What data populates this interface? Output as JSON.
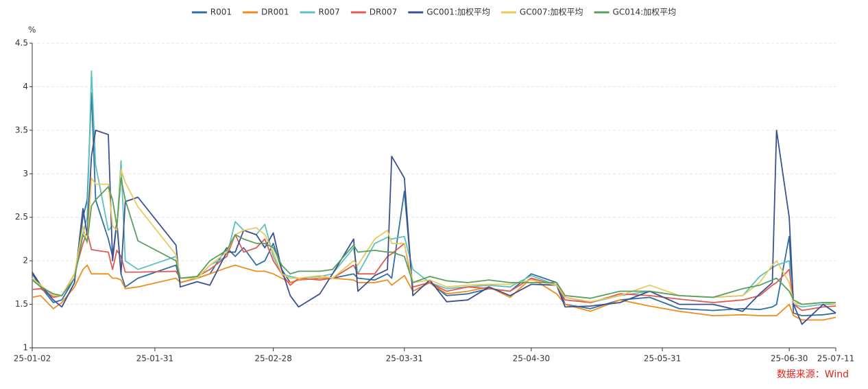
{
  "chart_data": {
    "type": "line",
    "y_unit": "%",
    "source": "数据来源：Wind",
    "legend": "top",
    "grid": true,
    "xlim": [
      "25-01-02",
      "25-07-11"
    ],
    "xticks": [
      "25-01-02",
      "25-01-31",
      "25-02-28",
      "25-03-31",
      "25-04-30",
      "25-05-31",
      "25-06-30",
      "25-07-11"
    ],
    "ylim": [
      1,
      4.5
    ],
    "yticks": [
      1,
      1.5,
      2,
      2.5,
      3,
      3.5,
      4,
      4.5
    ],
    "x": [
      "25-01-02",
      "25-01-04",
      "25-01-07",
      "25-01-09",
      "25-01-12",
      "25-01-14",
      "25-01-15",
      "25-01-16",
      "25-01-17",
      "25-01-20",
      "25-01-21",
      "25-01-22",
      "25-01-23",
      "25-01-24",
      "25-01-27",
      "25-02-05",
      "25-02-06",
      "25-02-10",
      "25-02-13",
      "25-02-17",
      "25-02-19",
      "25-02-21",
      "25-02-24",
      "25-02-26",
      "25-02-28",
      "25-03-02",
      "25-03-04",
      "25-03-06",
      "25-03-11",
      "25-03-14",
      "25-03-19",
      "25-03-20",
      "25-03-24",
      "25-03-27",
      "25-03-28",
      "25-03-31",
      "25-04-02",
      "25-04-06",
      "25-04-10",
      "25-04-15",
      "25-04-20",
      "25-04-25",
      "25-04-30",
      "25-05-06",
      "25-05-08",
      "25-05-14",
      "25-05-21",
      "25-05-28",
      "25-06-04",
      "25-06-12",
      "25-06-19",
      "25-06-23",
      "25-06-26",
      "25-06-27",
      "25-06-30",
      "25-07-01",
      "25-07-03",
      "25-07-08",
      "25-07-11"
    ],
    "series": [
      {
        "name": "R001",
        "color": "#2f6e9f",
        "values": [
          1.85,
          1.7,
          1.52,
          1.55,
          1.8,
          2.5,
          2.7,
          3.93,
          2.7,
          2.25,
          2.05,
          2.45,
          1.85,
          1.7,
          1.8,
          1.95,
          1.75,
          1.8,
          1.85,
          2.15,
          2.05,
          2.15,
          1.95,
          2.0,
          2.2,
          1.9,
          1.75,
          1.78,
          1.8,
          1.8,
          1.85,
          1.8,
          1.78,
          1.85,
          1.8,
          2.8,
          1.65,
          1.75,
          1.6,
          1.62,
          1.68,
          1.65,
          1.85,
          1.75,
          1.5,
          1.45,
          1.55,
          1.58,
          1.45,
          1.43,
          1.45,
          1.44,
          1.47,
          1.5,
          2.28,
          1.4,
          1.37,
          1.38,
          1.4
        ]
      },
      {
        "name": "DR001",
        "color": "#f08c1e",
        "values": [
          1.58,
          1.6,
          1.45,
          1.52,
          1.7,
          1.9,
          1.95,
          1.85,
          1.85,
          1.85,
          1.8,
          1.8,
          1.78,
          1.68,
          1.7,
          1.8,
          1.75,
          1.8,
          1.85,
          1.92,
          1.95,
          1.92,
          1.88,
          1.88,
          1.85,
          1.8,
          1.75,
          1.78,
          1.8,
          1.8,
          1.78,
          1.75,
          1.75,
          1.78,
          1.72,
          1.83,
          1.65,
          1.75,
          1.62,
          1.65,
          1.7,
          1.58,
          1.8,
          1.62,
          1.5,
          1.42,
          1.55,
          1.48,
          1.42,
          1.37,
          1.38,
          1.37,
          1.37,
          1.37,
          1.5,
          1.37,
          1.32,
          1.32,
          1.35
        ]
      },
      {
        "name": "R007",
        "color": "#5cc1c0",
        "values": [
          1.8,
          1.7,
          1.6,
          1.6,
          1.85,
          2.3,
          2.5,
          4.18,
          3.1,
          2.35,
          2.4,
          2.35,
          3.15,
          2.0,
          1.9,
          2.05,
          1.8,
          1.8,
          1.95,
          2.05,
          2.45,
          2.35,
          2.3,
          2.42,
          2.05,
          1.85,
          1.82,
          1.8,
          1.82,
          1.85,
          2.15,
          1.85,
          2.2,
          2.27,
          2.25,
          2.28,
          1.9,
          1.75,
          1.68,
          1.7,
          1.72,
          1.7,
          1.83,
          1.72,
          1.58,
          1.52,
          1.6,
          1.65,
          1.6,
          1.58,
          1.6,
          1.82,
          1.92,
          1.95,
          2.0,
          1.5,
          1.47,
          1.5,
          1.5
        ]
      },
      {
        "name": "DR007",
        "color": "#e05a55",
        "values": [
          1.67,
          1.68,
          1.58,
          1.6,
          1.85,
          2.2,
          2.33,
          2.13,
          2.12,
          2.1,
          1.9,
          2.12,
          2.05,
          1.87,
          1.87,
          1.88,
          1.8,
          1.82,
          1.9,
          2.05,
          2.3,
          2.1,
          2.15,
          2.25,
          2.0,
          1.85,
          1.72,
          1.8,
          1.78,
          1.8,
          1.95,
          1.85,
          1.85,
          2.05,
          2.08,
          2.2,
          1.7,
          1.75,
          1.65,
          1.7,
          1.68,
          1.65,
          1.8,
          1.72,
          1.55,
          1.52,
          1.62,
          1.6,
          1.56,
          1.52,
          1.55,
          1.6,
          1.72,
          1.75,
          1.9,
          1.5,
          1.43,
          1.47,
          1.48
        ]
      },
      {
        "name": "GC001:加权平均",
        "color": "#3c4f8f",
        "values": [
          1.87,
          1.72,
          1.55,
          1.47,
          1.75,
          2.6,
          2.3,
          3.2,
          3.5,
          3.45,
          2.0,
          2.45,
          1.85,
          2.68,
          2.73,
          2.18,
          1.7,
          1.76,
          1.72,
          2.1,
          2.1,
          2.35,
          2.3,
          2.15,
          2.32,
          1.9,
          1.6,
          1.47,
          1.62,
          1.85,
          2.25,
          1.65,
          1.83,
          1.9,
          3.2,
          2.95,
          1.6,
          1.78,
          1.53,
          1.55,
          1.7,
          1.6,
          1.73,
          1.72,
          1.47,
          1.48,
          1.52,
          1.65,
          1.5,
          1.5,
          1.42,
          1.62,
          1.75,
          3.5,
          2.5,
          1.5,
          1.27,
          1.5,
          1.4
        ]
      },
      {
        "name": "GC007:加权平均",
        "color": "#e8c95e",
        "values": [
          1.8,
          1.72,
          1.6,
          1.6,
          1.85,
          2.4,
          2.2,
          2.95,
          2.88,
          2.88,
          2.4,
          2.35,
          3.05,
          2.9,
          2.62,
          2.07,
          1.8,
          1.8,
          1.95,
          2.1,
          2.3,
          2.35,
          2.38,
          2.3,
          2.1,
          1.85,
          1.8,
          1.8,
          1.83,
          1.8,
          2.0,
          1.95,
          2.25,
          2.35,
          2.2,
          2.2,
          1.75,
          1.78,
          1.7,
          1.72,
          1.73,
          1.73,
          1.78,
          1.72,
          1.58,
          1.53,
          1.6,
          1.72,
          1.6,
          1.58,
          1.6,
          1.75,
          1.95,
          2.0,
          1.75,
          1.52,
          1.5,
          1.52,
          1.5
        ]
      },
      {
        "name": "GC014:加权平均",
        "color": "#5a9e5e",
        "values": [
          1.78,
          1.7,
          1.62,
          1.6,
          1.8,
          2.3,
          2.22,
          2.63,
          2.7,
          2.85,
          2.7,
          2.4,
          2.95,
          2.7,
          2.23,
          2.0,
          1.8,
          1.82,
          2.0,
          2.12,
          2.3,
          2.25,
          2.2,
          2.2,
          2.15,
          1.95,
          1.85,
          1.88,
          1.88,
          1.9,
          2.18,
          2.1,
          2.12,
          2.1,
          2.1,
          2.05,
          1.75,
          1.82,
          1.77,
          1.75,
          1.78,
          1.75,
          1.75,
          1.75,
          1.6,
          1.57,
          1.65,
          1.65,
          1.6,
          1.58,
          1.68,
          1.72,
          1.78,
          1.8,
          1.65,
          1.55,
          1.5,
          1.52,
          1.52
        ]
      }
    ]
  }
}
